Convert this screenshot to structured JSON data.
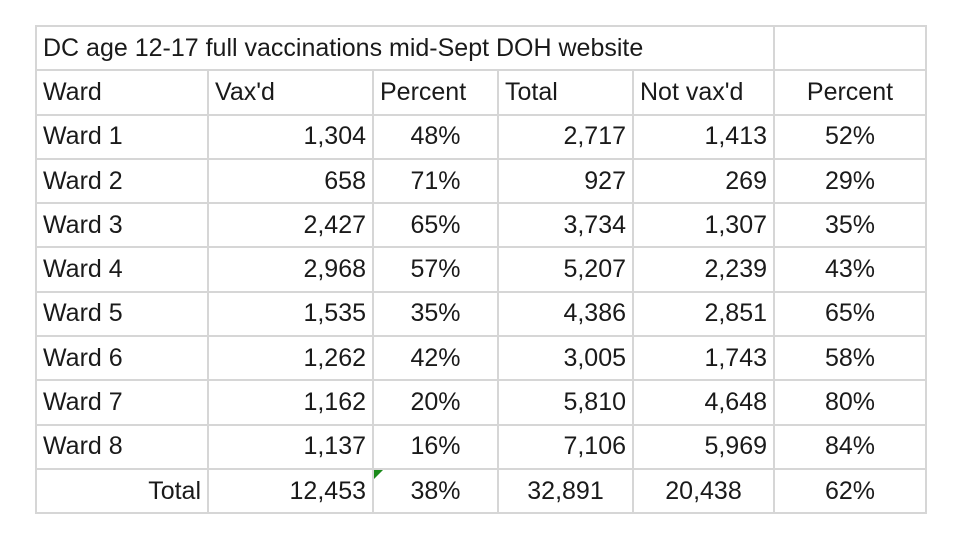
{
  "title": "DC age 12-17 full vaccinations mid-Sept DOH website",
  "headers": [
    "Ward",
    "Vax'd",
    "Percent",
    "Total",
    "Not vax'd",
    "Percent"
  ],
  "rows": [
    [
      "Ward 1",
      "1,304",
      "48%",
      "2,717",
      "1,413",
      "52%"
    ],
    [
      "Ward 2",
      "658",
      "71%",
      "927",
      "269",
      "29%"
    ],
    [
      "Ward 3",
      "2,427",
      "65%",
      "3,734",
      "1,307",
      "35%"
    ],
    [
      "Ward 4",
      "2,968",
      "57%",
      "5,207",
      "2,239",
      "43%"
    ],
    [
      "Ward 5",
      "1,535",
      "35%",
      "4,386",
      "2,851",
      "65%"
    ],
    [
      "Ward 6",
      "1,262",
      "42%",
      "3,005",
      "1,743",
      "58%"
    ],
    [
      "Ward 7",
      "1,162",
      "20%",
      "5,810",
      "4,648",
      "80%"
    ],
    [
      "Ward 8",
      "1,137",
      "16%",
      "7,106",
      "5,969",
      "84%"
    ]
  ],
  "total": [
    "Total",
    "12,453",
    "38%",
    "32,891",
    "20,438",
    "62%"
  ]
}
